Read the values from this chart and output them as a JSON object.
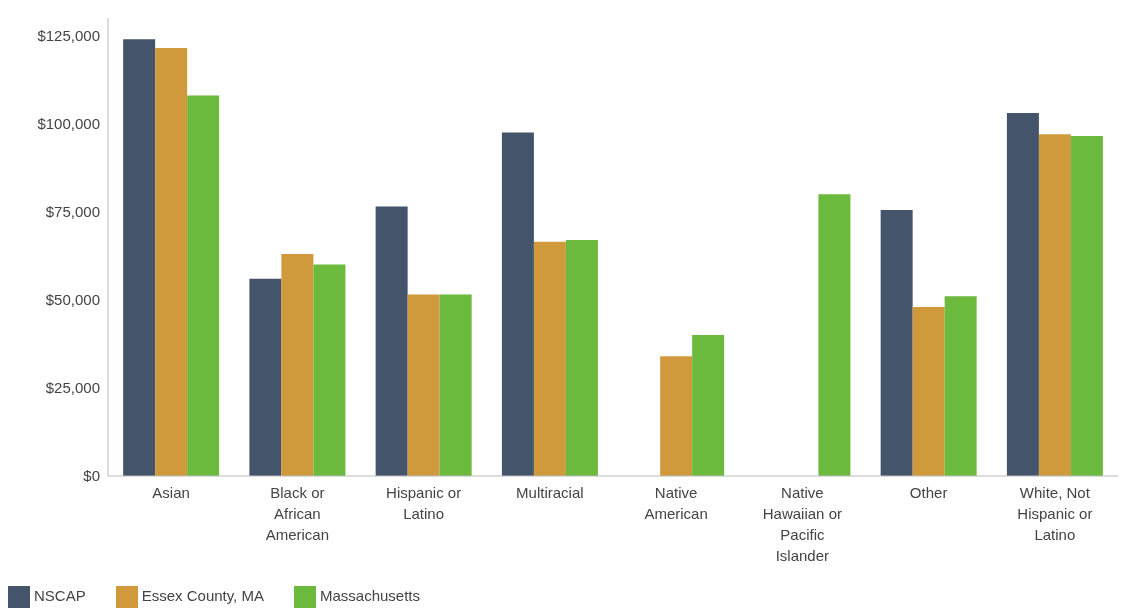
{
  "chart_data": {
    "type": "bar",
    "categories": [
      "Asian",
      "Black or African American",
      "Hispanic or Latino",
      "Multiracial",
      "Native American",
      "Native Hawaiian or Pacific Islander",
      "Other",
      "White, Not Hispanic or Latino"
    ],
    "series": [
      {
        "name": "NSCAP",
        "color": "#44546a",
        "values": [
          124000,
          56000,
          76500,
          97500,
          null,
          null,
          75500,
          103000
        ]
      },
      {
        "name": "Essex County, MA",
        "color": "#d09a3c",
        "values": [
          121500,
          63000,
          51500,
          66500,
          34000,
          null,
          48000,
          97000
        ]
      },
      {
        "name": "Massachusetts",
        "color": "#6bb93d",
        "values": [
          108000,
          60000,
          51500,
          67000,
          40000,
          80000,
          51000,
          96500
        ]
      }
    ],
    "ylim": [
      0,
      130000
    ],
    "yticks": [
      {
        "value": 0,
        "label": "$0"
      },
      {
        "value": 25000,
        "label": "$25,000"
      },
      {
        "value": 50000,
        "label": "$50,000"
      },
      {
        "value": 75000,
        "label": "$75,000"
      },
      {
        "value": 100000,
        "label": "$100,000"
      },
      {
        "value": 125000,
        "label": "$125,000"
      }
    ],
    "grid": false,
    "legend": "bottom left"
  }
}
